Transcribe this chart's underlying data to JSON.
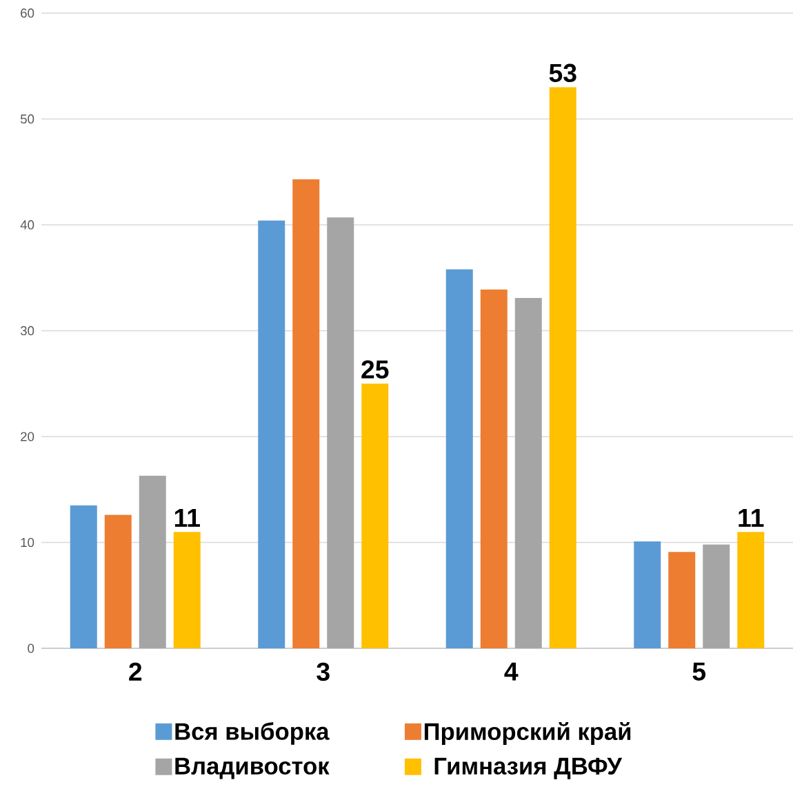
{
  "chart_data": {
    "type": "bar",
    "categories": [
      "2",
      "3",
      "4",
      "5"
    ],
    "series": [
      {
        "name": "Вся выборка",
        "color": "#5b9bd5",
        "values": [
          13.5,
          40.4,
          35.8,
          10.1
        ]
      },
      {
        "name": "Приморский край",
        "color": "#ed7d31",
        "values": [
          12.6,
          44.3,
          33.9,
          9.1
        ]
      },
      {
        "name": "Владивосток",
        "color": "#a5a5a5",
        "values": [
          16.3,
          40.7,
          33.1,
          9.8
        ]
      },
      {
        "name": "Гимназия ДВФУ",
        "color": "#ffc000",
        "values": [
          11,
          25,
          53,
          11
        ],
        "value_labels": [
          "11",
          "25",
          "53",
          "11"
        ]
      }
    ],
    "ylim": [
      0,
      60
    ],
    "yticks": [
      0,
      10,
      20,
      30,
      40,
      50,
      60
    ],
    "grid": "y",
    "legend": "bottom"
  }
}
